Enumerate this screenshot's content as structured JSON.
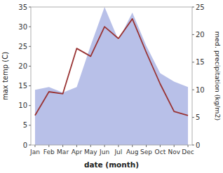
{
  "chart_data": {
    "type": "line",
    "categories": [
      "Jan",
      "Feb",
      "Mar",
      "Apr",
      "May",
      "Jun",
      "Jul",
      "Aug",
      "Sep",
      "Oct",
      "Nov",
      "Dec"
    ],
    "series": [
      {
        "type": "area",
        "axis": "y2",
        "color": "#b8c0e8",
        "values": [
          10.0,
          10.5,
          9.5,
          10.5,
          18.0,
          25.0,
          19.0,
          24.0,
          18.0,
          13.0,
          11.5,
          10.5
        ]
      },
      {
        "type": "line",
        "color": "#993333",
        "values": [
          7.5,
          13.5,
          13.0,
          24.5,
          22.5,
          30.0,
          27.0,
          32.0,
          23.5,
          15.5,
          8.5,
          7.5
        ]
      }
    ],
    "ylim": [
      0,
      35
    ],
    "yticks": [
      0,
      5,
      10,
      15,
      20,
      25,
      30,
      35
    ],
    "y2lim": [
      0,
      25
    ],
    "y2ticks": [
      0,
      5,
      10,
      15,
      20,
      25
    ],
    "ylabel": "max temp (C)",
    "y2label": "med. precipitation (kg/m2)",
    "xlabel": "date (month)",
    "grid": false
  }
}
